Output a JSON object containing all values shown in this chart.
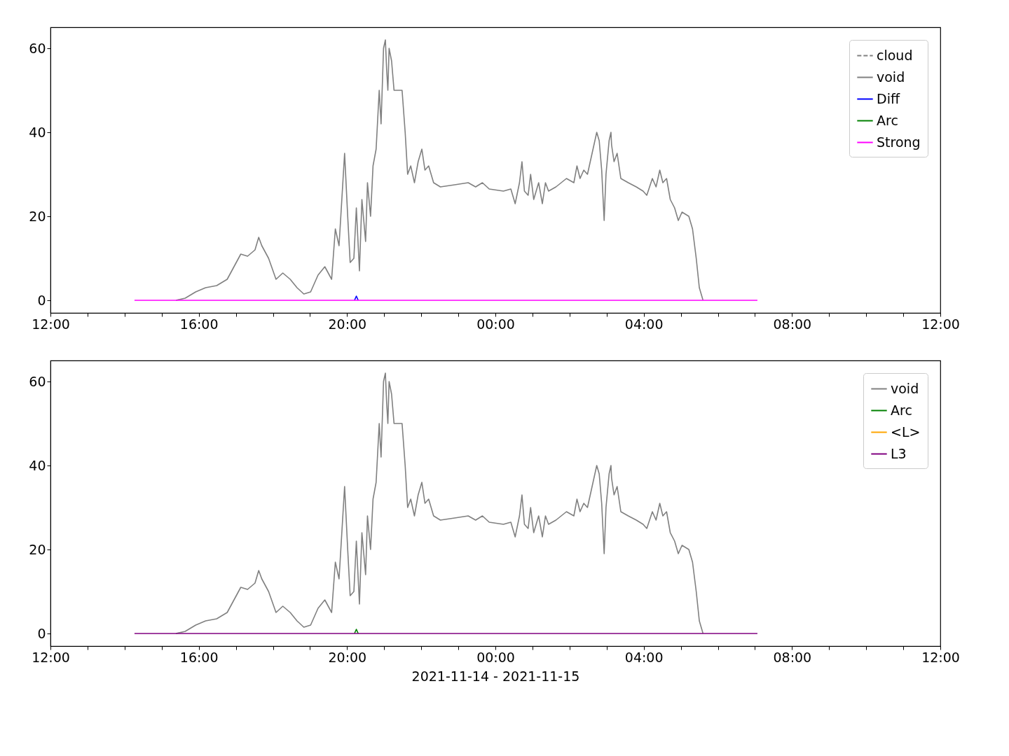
{
  "chart_data": [
    {
      "type": "line",
      "ylim": [
        -3,
        65
      ],
      "yticks": [
        0,
        20,
        40,
        60
      ],
      "xlim": [
        "2021-11-14T12:00",
        "2021-11-15T12:00"
      ],
      "xticks": [
        {
          "value": "2021-11-14T12:00",
          "label": "12:00"
        },
        {
          "value": "2021-11-14T13:00",
          "label": null
        },
        {
          "value": "2021-11-14T14:00",
          "label": null
        },
        {
          "value": "2021-11-14T15:00",
          "label": null
        },
        {
          "value": "2021-11-14T16:00",
          "label": "16:00"
        },
        {
          "value": "2021-11-14T17:00",
          "label": null
        },
        {
          "value": "2021-11-14T18:00",
          "label": null
        },
        {
          "value": "2021-11-14T19:00",
          "label": null
        },
        {
          "value": "2021-11-14T20:00",
          "label": "20:00"
        },
        {
          "value": "2021-11-14T21:00",
          "label": null
        },
        {
          "value": "2021-11-14T22:00",
          "label": null
        },
        {
          "value": "2021-11-14T23:00",
          "label": null
        },
        {
          "value": "2021-11-15T00:00",
          "label": "00:00"
        },
        {
          "value": "2021-11-15T01:00",
          "label": null
        },
        {
          "value": "2021-11-15T02:00",
          "label": null
        },
        {
          "value": "2021-11-15T03:00",
          "label": null
        },
        {
          "value": "2021-11-15T04:00",
          "label": "04:00"
        },
        {
          "value": "2021-11-15T05:00",
          "label": null
        },
        {
          "value": "2021-11-15T06:00",
          "label": null
        },
        {
          "value": "2021-11-15T07:00",
          "label": null
        },
        {
          "value": "2021-11-15T08:00",
          "label": "08:00"
        },
        {
          "value": "2021-11-15T09:00",
          "label": null
        },
        {
          "value": "2021-11-15T10:00",
          "label": null
        },
        {
          "value": "2021-11-15T11:00",
          "label": null
        },
        {
          "value": "2021-11-15T12:00",
          "label": "12:00"
        }
      ],
      "legend": "top right",
      "grid": false,
      "series": [
        {
          "name": "cloud",
          "color": "#808080",
          "line_style": "dashed"
        },
        {
          "name": "void",
          "color": "#808080",
          "x": [
            "2021-11-14T15:23",
            "2021-11-14T15:38",
            "2021-11-14T15:55",
            "2021-11-14T16:11",
            "2021-11-14T16:29",
            "2021-11-14T16:46",
            "2021-11-14T16:57",
            "2021-11-14T17:08",
            "2021-11-14T17:19",
            "2021-11-14T17:31",
            "2021-11-14T17:37",
            "2021-11-14T17:42",
            "2021-11-14T17:53",
            "2021-11-14T18:05",
            "2021-11-14T18:16",
            "2021-11-14T18:28",
            "2021-11-14T18:39",
            "2021-11-14T18:50",
            "2021-11-14T19:01",
            "2021-11-14T19:13",
            "2021-11-14T19:24",
            "2021-11-14T19:35",
            "2021-11-14T19:41",
            "2021-11-14T19:47",
            "2021-11-14T19:56",
            "2021-11-14T20:01",
            "2021-11-14T20:05",
            "2021-11-14T20:11",
            "2021-11-14T20:15",
            "2021-11-14T20:20",
            "2021-11-14T20:24",
            "2021-11-14T20:30",
            "2021-11-14T20:33",
            "2021-11-14T20:38",
            "2021-11-14T20:42",
            "2021-11-14T20:47",
            "2021-11-14T20:52",
            "2021-11-14T20:55",
            "2021-11-14T20:59",
            "2021-11-14T21:02",
            "2021-11-14T21:04",
            "2021-11-14T21:06",
            "2021-11-14T21:08",
            "2021-11-14T21:12",
            "2021-11-14T21:16",
            "2021-11-14T21:23",
            "2021-11-14T21:29",
            "2021-11-14T21:34",
            "2021-11-14T21:38",
            "2021-11-14T21:43",
            "2021-11-14T21:49",
            "2021-11-14T21:55",
            "2021-11-14T22:01",
            "2021-11-14T22:06",
            "2021-11-14T22:12",
            "2021-11-14T22:20",
            "2021-11-14T22:31",
            "2021-11-14T22:54",
            "2021-11-14T23:16",
            "2021-11-14T23:28",
            "2021-11-14T23:39",
            "2021-11-14T23:50",
            "2021-11-15T00:13",
            "2021-11-15T00:25",
            "2021-11-15T00:32",
            "2021-11-15T00:39",
            "2021-11-15T00:43",
            "2021-11-15T00:47",
            "2021-11-15T00:53",
            "2021-11-15T00:57",
            "2021-11-15T01:02",
            "2021-11-15T01:10",
            "2021-11-15T01:16",
            "2021-11-15T01:21",
            "2021-11-15T01:26",
            "2021-11-15T01:38",
            "2021-11-15T01:55",
            "2021-11-15T02:07",
            "2021-11-15T02:12",
            "2021-11-15T02:17",
            "2021-11-15T02:23",
            "2021-11-15T02:29",
            "2021-11-15T02:38",
            "2021-11-15T02:44",
            "2021-11-15T02:48",
            "2021-11-15T02:52",
            "2021-11-15T02:56",
            "2021-11-15T02:59",
            "2021-11-15T03:04",
            "2021-11-15T03:07",
            "2021-11-15T03:08",
            "2021-11-15T03:12",
            "2021-11-15T03:17",
            "2021-11-15T03:23",
            "2021-11-15T03:35",
            "2021-11-15T03:48",
            "2021-11-15T03:59",
            "2021-11-15T04:05",
            "2021-11-15T04:14",
            "2021-11-15T04:20",
            "2021-11-15T04:26",
            "2021-11-15T04:31",
            "2021-11-15T04:37",
            "2021-11-15T04:43",
            "2021-11-15T04:50",
            "2021-11-15T04:56",
            "2021-11-15T05:02",
            "2021-11-15T05:13",
            "2021-11-15T05:19",
            "2021-11-15T05:25",
            "2021-11-15T05:30",
            "2021-11-15T05:36"
          ],
          "values": [
            0,
            0.5,
            2,
            3,
            3.5,
            5,
            8,
            11,
            10.5,
            12,
            15,
            13,
            10,
            5,
            6.5,
            5,
            3,
            1.5,
            2,
            6,
            8,
            5,
            17,
            13,
            35,
            20,
            9,
            10,
            22,
            7,
            24,
            14,
            28,
            20,
            32,
            36,
            50,
            42,
            60,
            62,
            55,
            50,
            60,
            57,
            50,
            50,
            50,
            40,
            30,
            32,
            28,
            33,
            36,
            31,
            32,
            28,
            27,
            27.5,
            28,
            27,
            28,
            26.5,
            26,
            26.5,
            23,
            28,
            33,
            26,
            25,
            30,
            24,
            28,
            23,
            28,
            26,
            27,
            29,
            28,
            32,
            29,
            31,
            30,
            36,
            40,
            38,
            31,
            19,
            30,
            38,
            40,
            37,
            33,
            35,
            29,
            28,
            27,
            26,
            25,
            29,
            27,
            31,
            28,
            29,
            24,
            22,
            19,
            21,
            20,
            17,
            10,
            3,
            0
          ]
        },
        {
          "name": "Diff",
          "color": "#0000ff",
          "x": [
            "2021-11-14T20:12",
            "2021-11-14T20:15",
            "2021-11-14T20:18"
          ],
          "values": [
            0,
            1,
            0
          ]
        },
        {
          "name": "Arc",
          "color": "#008000"
        },
        {
          "name": "Strong",
          "color": "#ff00ff",
          "x": [
            "2021-11-14T14:16",
            "2021-11-15T07:04"
          ],
          "values": [
            0,
            0
          ]
        }
      ]
    },
    {
      "type": "line",
      "ylim": [
        -3,
        65
      ],
      "yticks": [
        0,
        20,
        40,
        60
      ],
      "xlim": [
        "2021-11-14T12:00",
        "2021-11-15T12:00"
      ],
      "xticks": [
        {
          "value": "2021-11-14T12:00",
          "label": "12:00"
        },
        {
          "value": "2021-11-14T13:00",
          "label": null
        },
        {
          "value": "2021-11-14T14:00",
          "label": null
        },
        {
          "value": "2021-11-14T15:00",
          "label": null
        },
        {
          "value": "2021-11-14T16:00",
          "label": "16:00"
        },
        {
          "value": "2021-11-14T17:00",
          "label": null
        },
        {
          "value": "2021-11-14T18:00",
          "label": null
        },
        {
          "value": "2021-11-14T19:00",
          "label": null
        },
        {
          "value": "2021-11-14T20:00",
          "label": "20:00"
        },
        {
          "value": "2021-11-14T21:00",
          "label": null
        },
        {
          "value": "2021-11-14T22:00",
          "label": null
        },
        {
          "value": "2021-11-14T23:00",
          "label": null
        },
        {
          "value": "2021-11-15T00:00",
          "label": "00:00"
        },
        {
          "value": "2021-11-15T01:00",
          "label": null
        },
        {
          "value": "2021-11-15T02:00",
          "label": null
        },
        {
          "value": "2021-11-15T03:00",
          "label": null
        },
        {
          "value": "2021-11-15T04:00",
          "label": "04:00"
        },
        {
          "value": "2021-11-15T05:00",
          "label": null
        },
        {
          "value": "2021-11-15T06:00",
          "label": null
        },
        {
          "value": "2021-11-15T07:00",
          "label": null
        },
        {
          "value": "2021-11-15T08:00",
          "label": "08:00"
        },
        {
          "value": "2021-11-15T09:00",
          "label": null
        },
        {
          "value": "2021-11-15T10:00",
          "label": null
        },
        {
          "value": "2021-11-15T11:00",
          "label": null
        },
        {
          "value": "2021-11-15T12:00",
          "label": "12:00"
        }
      ],
      "xlabel": "2021-11-14 - 2021-11-15",
      "legend": "top right",
      "grid": false,
      "series": [
        {
          "name": "void",
          "color": "#808080",
          "x": [
            "2021-11-14T15:23",
            "2021-11-14T15:38",
            "2021-11-14T15:55",
            "2021-11-14T16:11",
            "2021-11-14T16:29",
            "2021-11-14T16:46",
            "2021-11-14T16:57",
            "2021-11-14T17:08",
            "2021-11-14T17:19",
            "2021-11-14T17:31",
            "2021-11-14T17:37",
            "2021-11-14T17:42",
            "2021-11-14T17:53",
            "2021-11-14T18:05",
            "2021-11-14T18:16",
            "2021-11-14T18:28",
            "2021-11-14T18:39",
            "2021-11-14T18:50",
            "2021-11-14T19:01",
            "2021-11-14T19:13",
            "2021-11-14T19:24",
            "2021-11-14T19:35",
            "2021-11-14T19:41",
            "2021-11-14T19:47",
            "2021-11-14T19:56",
            "2021-11-14T20:01",
            "2021-11-14T20:05",
            "2021-11-14T20:11",
            "2021-11-14T20:15",
            "2021-11-14T20:20",
            "2021-11-14T20:24",
            "2021-11-14T20:30",
            "2021-11-14T20:33",
            "2021-11-14T20:38",
            "2021-11-14T20:42",
            "2021-11-14T20:47",
            "2021-11-14T20:52",
            "2021-11-14T20:55",
            "2021-11-14T20:59",
            "2021-11-14T21:02",
            "2021-11-14T21:04",
            "2021-11-14T21:06",
            "2021-11-14T21:08",
            "2021-11-14T21:12",
            "2021-11-14T21:16",
            "2021-11-14T21:23",
            "2021-11-14T21:29",
            "2021-11-14T21:34",
            "2021-11-14T21:38",
            "2021-11-14T21:43",
            "2021-11-14T21:49",
            "2021-11-14T21:55",
            "2021-11-14T22:01",
            "2021-11-14T22:06",
            "2021-11-14T22:12",
            "2021-11-14T22:20",
            "2021-11-14T22:31",
            "2021-11-14T22:54",
            "2021-11-14T23:16",
            "2021-11-14T23:28",
            "2021-11-14T23:39",
            "2021-11-14T23:50",
            "2021-11-15T00:13",
            "2021-11-15T00:25",
            "2021-11-15T00:32",
            "2021-11-15T00:39",
            "2021-11-15T00:43",
            "2021-11-15T00:47",
            "2021-11-15T00:53",
            "2021-11-15T00:57",
            "2021-11-15T01:02",
            "2021-11-15T01:10",
            "2021-11-15T01:16",
            "2021-11-15T01:21",
            "2021-11-15T01:26",
            "2021-11-15T01:38",
            "2021-11-15T01:55",
            "2021-11-15T02:07",
            "2021-11-15T02:12",
            "2021-11-15T02:17",
            "2021-11-15T02:23",
            "2021-11-15T02:29",
            "2021-11-15T02:38",
            "2021-11-15T02:44",
            "2021-11-15T02:48",
            "2021-11-15T02:52",
            "2021-11-15T02:56",
            "2021-11-15T02:59",
            "2021-11-15T03:04",
            "2021-11-15T03:07",
            "2021-11-15T03:08",
            "2021-11-15T03:12",
            "2021-11-15T03:17",
            "2021-11-15T03:23",
            "2021-11-15T03:35",
            "2021-11-15T03:48",
            "2021-11-15T03:59",
            "2021-11-15T04:05",
            "2021-11-15T04:14",
            "2021-11-15T04:20",
            "2021-11-15T04:26",
            "2021-11-15T04:31",
            "2021-11-15T04:37",
            "2021-11-15T04:43",
            "2021-11-15T04:50",
            "2021-11-15T04:56",
            "2021-11-15T05:02",
            "2021-11-15T05:13",
            "2021-11-15T05:19",
            "2021-11-15T05:25",
            "2021-11-15T05:30",
            "2021-11-15T05:36"
          ],
          "values": [
            0,
            0.5,
            2,
            3,
            3.5,
            5,
            8,
            11,
            10.5,
            12,
            15,
            13,
            10,
            5,
            6.5,
            5,
            3,
            1.5,
            2,
            6,
            8,
            5,
            17,
            13,
            35,
            20,
            9,
            10,
            22,
            7,
            24,
            14,
            28,
            20,
            32,
            36,
            50,
            42,
            60,
            62,
            55,
            50,
            60,
            57,
            50,
            50,
            50,
            40,
            30,
            32,
            28,
            33,
            36,
            31,
            32,
            28,
            27,
            27.5,
            28,
            27,
            28,
            26.5,
            26,
            26.5,
            23,
            28,
            33,
            26,
            25,
            30,
            24,
            28,
            23,
            28,
            26,
            27,
            29,
            28,
            32,
            29,
            31,
            30,
            36,
            40,
            38,
            31,
            19,
            30,
            38,
            40,
            37,
            33,
            35,
            29,
            28,
            27,
            26,
            25,
            29,
            27,
            31,
            28,
            29,
            24,
            22,
            19,
            21,
            20,
            17,
            10,
            3,
            0
          ]
        },
        {
          "name": "Arc",
          "color": "#008000",
          "x": [
            "2021-11-14T20:12",
            "2021-11-14T20:15",
            "2021-11-14T20:18"
          ],
          "values": [
            0,
            1,
            0
          ]
        },
        {
          "name": "<L>",
          "color": "#ffa500"
        },
        {
          "name": "L3",
          "color": "#800080",
          "x": [
            "2021-11-14T14:16",
            "2021-11-15T07:04"
          ],
          "values": [
            0,
            0
          ]
        }
      ]
    }
  ]
}
